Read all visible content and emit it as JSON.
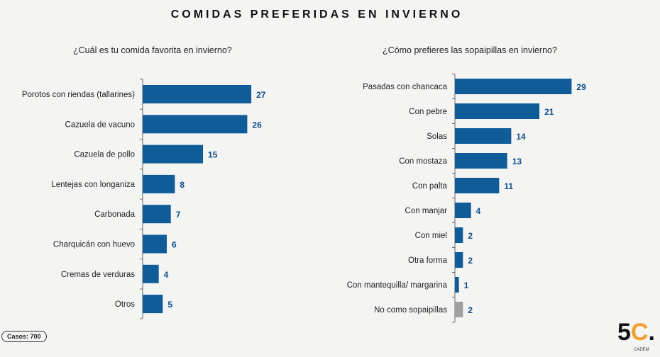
{
  "title": "COMIDAS PREFERIDAS EN INVIERNO",
  "casos": "Casos: 700",
  "logo": {
    "text": "5C",
    "sub": "CADEM"
  },
  "chart_data": [
    {
      "type": "bar",
      "orientation": "horizontal",
      "title": "¿Cuál es tu comida favorita en invierno?",
      "categories": [
        "Porotos con riendas (tallarines)",
        "Cazuela de vacuno",
        "Cazuela de pollo",
        "Lentejas con longaniza",
        "Carbonada",
        "Charquicán con huevo",
        "Cremas de verduras",
        "Otros"
      ],
      "values": [
        27,
        26,
        15,
        8,
        7,
        6,
        4,
        5
      ],
      "colors": [
        "#0f5c99",
        "#0f5c99",
        "#0f5c99",
        "#0f5c99",
        "#0f5c99",
        "#0f5c99",
        "#0f5c99",
        "#0f5c99"
      ]
    },
    {
      "type": "bar",
      "orientation": "horizontal",
      "title": "¿Cómo prefieres las sopaipillas en invierno?",
      "categories": [
        "Pasadas con chancaca",
        "Con pebre",
        "Solas",
        "Con mostaza",
        "Con palta",
        "Con manjar",
        "Con miel",
        "Otra forma",
        "Con mantequilla/ margarina",
        "No como sopaipillas"
      ],
      "values": [
        29,
        21,
        14,
        13,
        11,
        4,
        2,
        2,
        1,
        2
      ],
      "colors": [
        "#0f5c99",
        "#0f5c99",
        "#0f5c99",
        "#0f5c99",
        "#0f5c99",
        "#0f5c99",
        "#0f5c99",
        "#0f5c99",
        "#0f5c99",
        "#a0a0a0"
      ]
    }
  ]
}
